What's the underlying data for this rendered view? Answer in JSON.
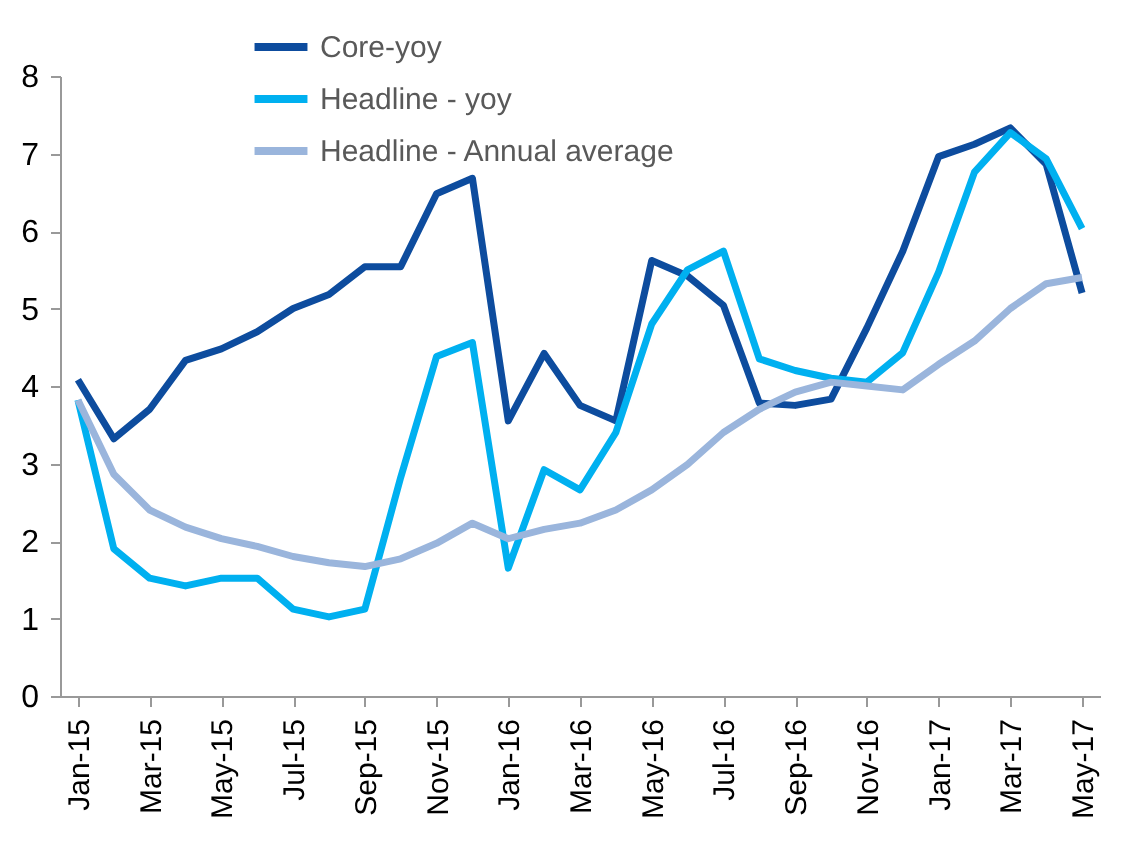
{
  "chart_data": {
    "type": "line",
    "categories": [
      "Jan-15",
      null,
      "Mar-15",
      null,
      "May-15",
      null,
      "Jul-15",
      null,
      "Sep-15",
      null,
      "Nov-15",
      null,
      "Jan-16",
      null,
      "Mar-16",
      null,
      "May-16",
      null,
      "Jul-16",
      null,
      "Sep-16",
      null,
      "Nov-16",
      null,
      "Jan-17",
      null,
      "Mar-17",
      null,
      "May-17"
    ],
    "series": [
      {
        "name": "Core-yoy",
        "color": "#0d4c9e",
        "values": [
          4.08,
          3.32,
          3.7,
          4.33,
          4.48,
          4.7,
          5.0,
          5.18,
          5.54,
          5.54,
          6.48,
          6.68,
          3.55,
          4.42,
          3.75,
          3.55,
          5.62,
          5.42,
          5.04,
          3.78,
          3.75,
          3.83,
          4.75,
          5.74,
          6.96,
          7.12,
          7.33,
          6.86,
          5.2
        ]
      },
      {
        "name": "Headline - yoy",
        "color": "#00b0f0",
        "values": [
          3.82,
          1.9,
          1.52,
          1.42,
          1.52,
          1.52,
          1.12,
          1.02,
          1.12,
          2.82,
          4.38,
          4.56,
          1.65,
          2.92,
          2.66,
          3.4,
          4.8,
          5.5,
          5.74,
          4.35,
          4.2,
          4.1,
          4.05,
          4.43,
          5.47,
          6.76,
          7.27,
          6.93,
          6.03
        ]
      },
      {
        "name": "Headline - Annual average",
        "color": "#9ab5dc",
        "values": [
          3.82,
          2.86,
          2.4,
          2.18,
          2.03,
          1.93,
          1.8,
          1.72,
          1.67,
          1.77,
          1.97,
          2.23,
          2.03,
          2.15,
          2.23,
          2.4,
          2.66,
          2.99,
          3.4,
          3.7,
          3.92,
          4.05,
          4.0,
          3.95,
          4.28,
          4.58,
          5.0,
          5.32,
          5.4
        ]
      }
    ],
    "ylim": [
      0,
      8
    ],
    "yticks": [
      0,
      1,
      2,
      3,
      4,
      5,
      6,
      7,
      8
    ],
    "grid": false,
    "legend": "top",
    "line_style": "solid",
    "marker": "none"
  }
}
